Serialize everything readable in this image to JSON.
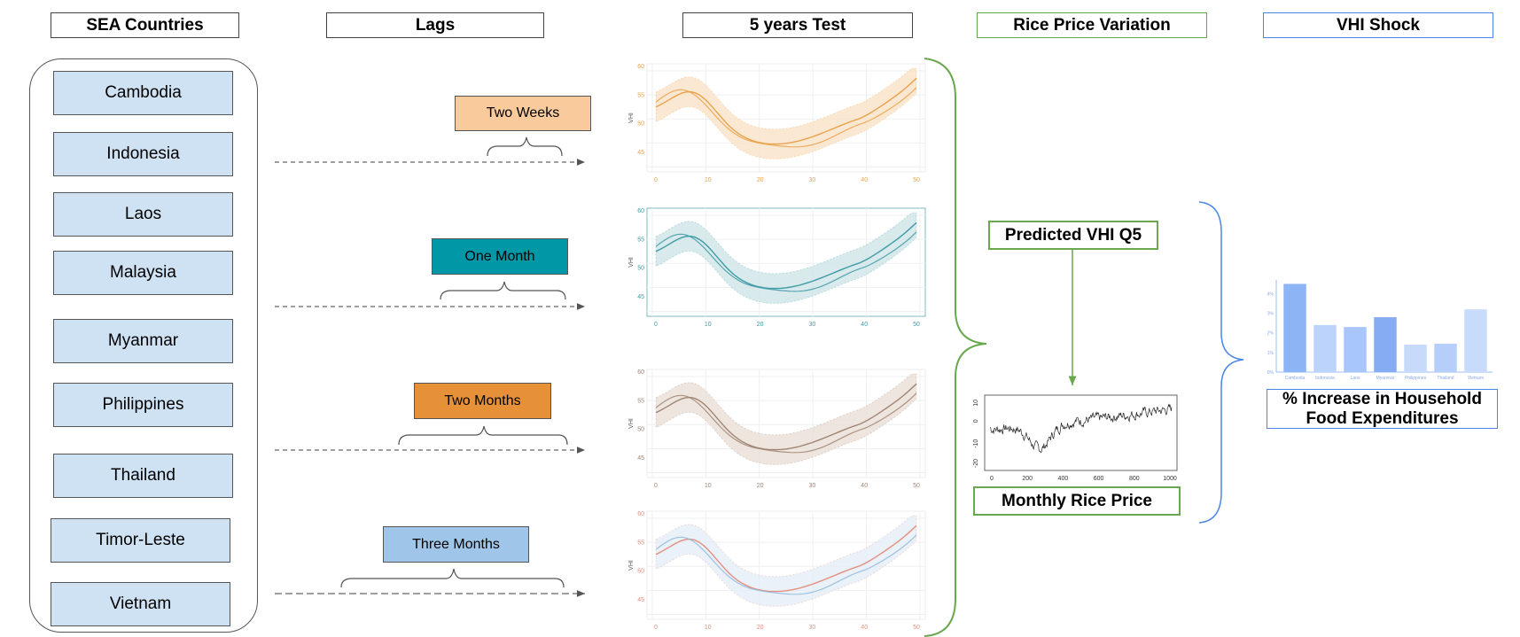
{
  "headers": {
    "countries": "SEA Countries",
    "lags": "Lags",
    "test": "5 years Test",
    "rice": "Rice Price Variation",
    "vhi": "VHI Shock"
  },
  "countries": [
    "Cambodia",
    "Indonesia",
    "Laos",
    "Malaysia",
    "Myanmar",
    "Philippines",
    "Thailand",
    "Timor-Leste",
    "Vietnam"
  ],
  "lags": [
    {
      "label": "Two Weeks",
      "color": "#f9cb9c"
    },
    {
      "label": "One Month",
      "color": "#0097a7"
    },
    {
      "label": "Two Months",
      "color": "#e69138"
    },
    {
      "label": "Three Months",
      "color": "#9fc5e8"
    }
  ],
  "test_charts": {
    "ylabel": "VHI",
    "xticks": [
      "0",
      "10",
      "20",
      "30",
      "40",
      "50"
    ],
    "yticks": [
      "45",
      "50",
      "55",
      "60"
    ],
    "colors": [
      "#e8a24c",
      "#3e9aa6",
      "#a08574",
      "#e38f80"
    ],
    "band_colors": [
      "#fbe3c8",
      "#cfe6e8",
      "#eadfd8",
      "#e5eef7"
    ]
  },
  "predicted_vhi_label": "Predicted VHI Q5",
  "monthly_rice_label": "Monthly Rice Price",
  "rice_chart": {
    "xticks": [
      "0",
      "200",
      "400",
      "600",
      "800",
      "1000"
    ],
    "yticks": [
      "10",
      "0",
      "-10",
      "-20"
    ]
  },
  "household_label": "% Increase in Household Food Expenditures",
  "chart_data": {
    "type": "bar",
    "categories": [
      "Cambodia",
      "Indonesia",
      "Laos",
      "Myanmar",
      "Philippines",
      "Thailand",
      "Vietnam"
    ],
    "values": [
      4.5,
      2.4,
      2.3,
      2.8,
      1.4,
      1.45,
      3.2
    ],
    "yticks": [
      "0%",
      "1%",
      "2%",
      "3%",
      "4%"
    ],
    "ylim": [
      0,
      4.7
    ],
    "colors": [
      "#8db4f5",
      "#bcd3fb",
      "#a9c6fa",
      "#86adf3",
      "#c7dafb",
      "#b6cffa",
      "#c9dbfb"
    ]
  }
}
